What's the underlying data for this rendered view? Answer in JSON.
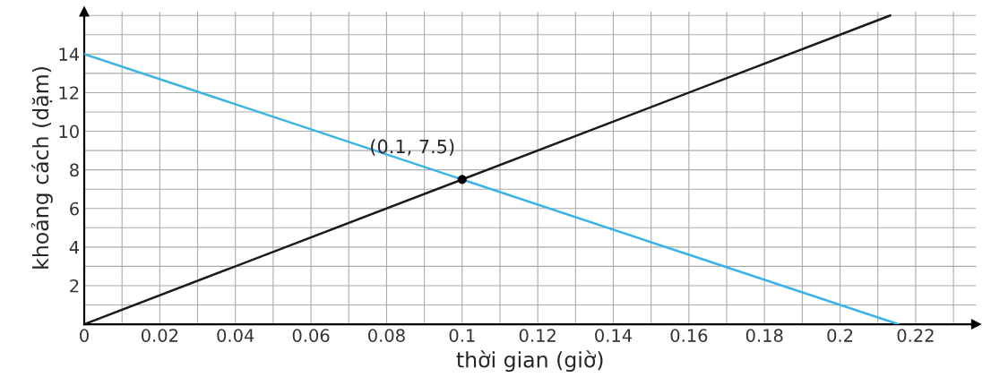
{
  "chart_data": {
    "type": "line",
    "xlabel": "thời gian (giờ)",
    "ylabel": "khoảng cách (dặm)",
    "series": [
      {
        "color": "#1a1a1a",
        "x": [
          0,
          0.2133
        ],
        "values": [
          0,
          16
        ]
      },
      {
        "color": "#3ab4e2",
        "x": [
          0,
          0.2154
        ],
        "values": [
          14,
          0
        ]
      },
      {
        "type": "scatter",
        "color": "#000000",
        "x": [
          0.1
        ],
        "values": [
          7.5
        ],
        "marker": "circle"
      }
    ],
    "annotations": [
      {
        "text": "(0.1, 7.5)",
        "x": 0.1,
        "y": 7.5
      }
    ],
    "xlim": [
      0,
      0.236
    ],
    "ylim": [
      0,
      16.2
    ],
    "xticks": [
      {
        "value": 0,
        "label": "0"
      },
      {
        "value": 0.01,
        "label": null
      },
      0.02,
      {
        "value": 0.03,
        "label": null
      },
      0.04,
      {
        "value": 0.05,
        "label": null
      },
      0.06,
      {
        "value": 0.07,
        "label": null
      },
      0.08,
      {
        "value": 0.09,
        "label": null
      },
      0.1,
      {
        "value": 0.11,
        "label": null
      },
      0.12,
      {
        "value": 0.13,
        "label": null
      },
      0.14,
      {
        "value": 0.15,
        "label": null
      },
      0.16,
      {
        "value": 0.17,
        "label": null
      },
      0.18,
      {
        "value": 0.19,
        "label": null
      },
      0.2,
      {
        "value": 0.21,
        "label": null
      },
      0.22,
      {
        "value": 0.23,
        "label": null
      }
    ],
    "yticks": [
      {
        "value": 0,
        "label": null
      },
      {
        "value": 1,
        "label": null
      },
      2,
      {
        "value": 3,
        "label": null
      },
      4,
      {
        "value": 5,
        "label": null
      },
      6,
      {
        "value": 7,
        "label": null
      },
      8,
      {
        "value": 9,
        "label": null
      },
      10,
      {
        "value": 11,
        "label": null
      },
      12,
      {
        "value": 13,
        "label": null
      },
      14,
      {
        "value": 15,
        "label": null
      },
      {
        "value": 16,
        "label": null
      }
    ],
    "grid": true,
    "legend": false,
    "line_style": "solid"
  }
}
